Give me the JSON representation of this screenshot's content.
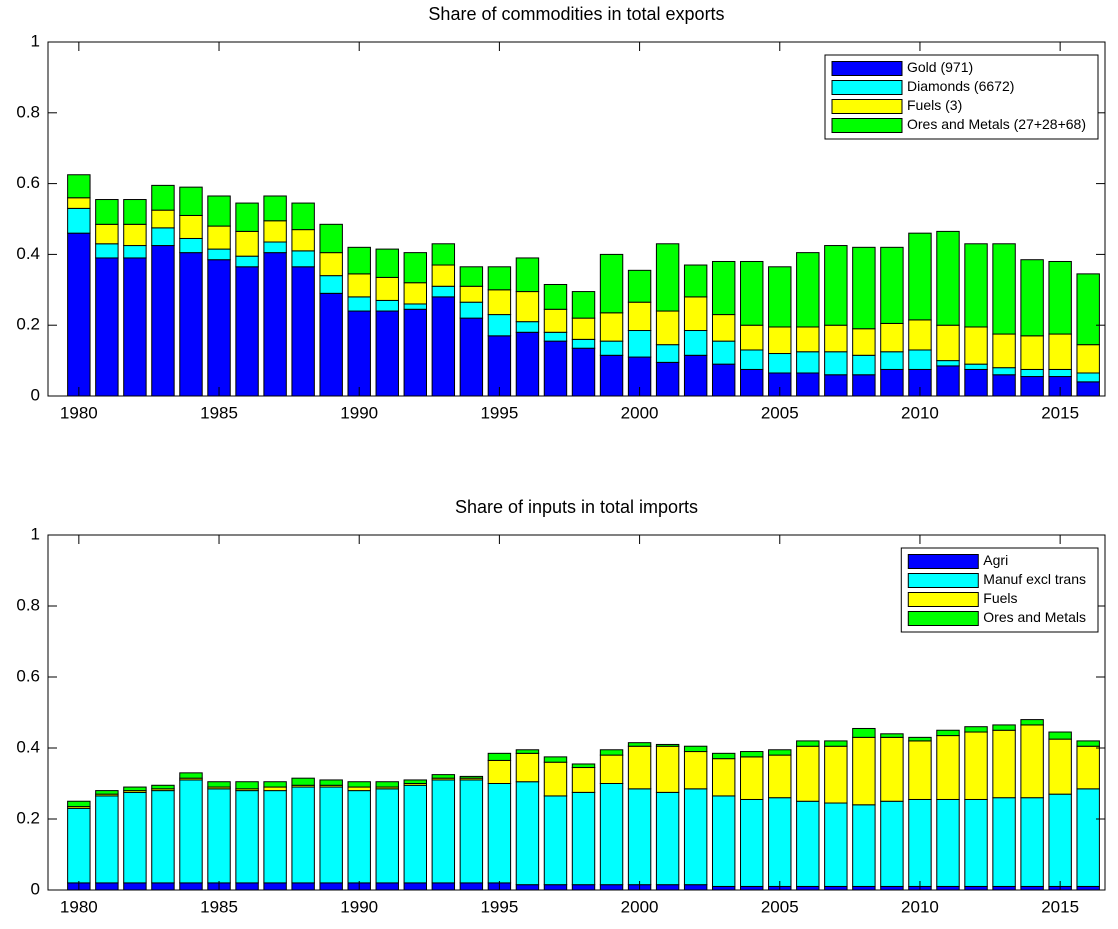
{
  "chart_data": [
    {
      "type": "stacked-bar",
      "title": "Share of commodities in total exports",
      "x": [
        1980,
        1981,
        1982,
        1983,
        1984,
        1985,
        1986,
        1987,
        1988,
        1989,
        1990,
        1991,
        1992,
        1993,
        1994,
        1995,
        1996,
        1997,
        1998,
        1999,
        2000,
        2001,
        2002,
        2003,
        2004,
        2005,
        2006,
        2007,
        2008,
        2009,
        2010,
        2011,
        2012,
        2013,
        2014,
        2015,
        2016
      ],
      "series": [
        {
          "name": "Gold (971)",
          "color": "#0000ff",
          "values": [
            0.46,
            0.39,
            0.39,
            0.425,
            0.405,
            0.385,
            0.365,
            0.405,
            0.365,
            0.29,
            0.24,
            0.24,
            0.245,
            0.28,
            0.22,
            0.17,
            0.18,
            0.155,
            0.135,
            0.115,
            0.11,
            0.095,
            0.115,
            0.09,
            0.075,
            0.065,
            0.065,
            0.06,
            0.06,
            0.075,
            0.075,
            0.085,
            0.075,
            0.06,
            0.055,
            0.055,
            0.04
          ]
        },
        {
          "name": "Diamonds (6672)",
          "color": "#00ffff",
          "values": [
            0.07,
            0.04,
            0.035,
            0.05,
            0.04,
            0.03,
            0.03,
            0.03,
            0.045,
            0.05,
            0.04,
            0.03,
            0.015,
            0.03,
            0.045,
            0.06,
            0.03,
            0.025,
            0.025,
            0.04,
            0.075,
            0.05,
            0.07,
            0.065,
            0.055,
            0.055,
            0.06,
            0.065,
            0.055,
            0.05,
            0.055,
            0.015,
            0.015,
            0.02,
            0.02,
            0.02,
            0.025
          ]
        },
        {
          "name": "Fuels (3)",
          "color": "#ffff00",
          "values": [
            0.03,
            0.055,
            0.06,
            0.05,
            0.065,
            0.065,
            0.07,
            0.06,
            0.06,
            0.065,
            0.065,
            0.065,
            0.06,
            0.06,
            0.045,
            0.07,
            0.085,
            0.065,
            0.06,
            0.08,
            0.08,
            0.095,
            0.095,
            0.075,
            0.07,
            0.075,
            0.07,
            0.075,
            0.075,
            0.08,
            0.085,
            0.1,
            0.105,
            0.095,
            0.095,
            0.1,
            0.08
          ]
        },
        {
          "name": "Ores and Metals (27+28+68)",
          "color": "#00ff00",
          "values": [
            0.065,
            0.07,
            0.07,
            0.07,
            0.08,
            0.085,
            0.08,
            0.07,
            0.075,
            0.08,
            0.075,
            0.08,
            0.085,
            0.06,
            0.055,
            0.065,
            0.095,
            0.07,
            0.075,
            0.165,
            0.09,
            0.19,
            0.09,
            0.15,
            0.18,
            0.17,
            0.21,
            0.225,
            0.23,
            0.215,
            0.245,
            0.265,
            0.235,
            0.255,
            0.215,
            0.205,
            0.2
          ]
        }
      ],
      "xlim": [
        1978.9,
        2016.6
      ],
      "xticks": [
        1980,
        1985,
        1990,
        1995,
        2000,
        2005,
        2010,
        2015
      ],
      "ylim": [
        0,
        1
      ],
      "yticks": [
        0,
        0.2,
        0.4,
        0.6,
        0.8,
        1
      ],
      "legend": "upper right"
    },
    {
      "type": "stacked-bar",
      "title": "Share of inputs in total imports",
      "x": [
        1980,
        1981,
        1982,
        1983,
        1984,
        1985,
        1986,
        1987,
        1988,
        1989,
        1990,
        1991,
        1992,
        1993,
        1994,
        1995,
        1996,
        1997,
        1998,
        1999,
        2000,
        2001,
        2002,
        2003,
        2004,
        2005,
        2006,
        2007,
        2008,
        2009,
        2010,
        2011,
        2012,
        2013,
        2014,
        2015,
        2016
      ],
      "series": [
        {
          "name": "Agri",
          "color": "#0000ff",
          "values": [
            0.02,
            0.02,
            0.02,
            0.02,
            0.02,
            0.02,
            0.02,
            0.02,
            0.02,
            0.02,
            0.02,
            0.02,
            0.02,
            0.02,
            0.02,
            0.02,
            0.015,
            0.015,
            0.015,
            0.015,
            0.015,
            0.015,
            0.015,
            0.01,
            0.01,
            0.01,
            0.01,
            0.01,
            0.01,
            0.01,
            0.01,
            0.01,
            0.01,
            0.01,
            0.01,
            0.01,
            0.01
          ]
        },
        {
          "name": "Manuf excl trans",
          "color": "#00ffff",
          "values": [
            0.21,
            0.245,
            0.255,
            0.26,
            0.29,
            0.265,
            0.26,
            0.26,
            0.27,
            0.27,
            0.26,
            0.265,
            0.275,
            0.29,
            0.29,
            0.28,
            0.29,
            0.25,
            0.26,
            0.285,
            0.27,
            0.26,
            0.27,
            0.255,
            0.245,
            0.25,
            0.24,
            0.235,
            0.23,
            0.24,
            0.245,
            0.245,
            0.245,
            0.25,
            0.25,
            0.26,
            0.275
          ]
        },
        {
          "name": "Fuels",
          "color": "#ffff00",
          "values": [
            0.005,
            0.005,
            0.005,
            0.005,
            0.005,
            0.005,
            0.005,
            0.01,
            0.005,
            0.005,
            0.01,
            0.005,
            0.005,
            0.005,
            0.005,
            0.065,
            0.08,
            0.095,
            0.07,
            0.08,
            0.12,
            0.13,
            0.105,
            0.105,
            0.12,
            0.12,
            0.155,
            0.16,
            0.19,
            0.18,
            0.165,
            0.18,
            0.19,
            0.19,
            0.205,
            0.155,
            0.12
          ]
        },
        {
          "name": "Ores and Metals",
          "color": "#00ff00",
          "values": [
            0.015,
            0.01,
            0.01,
            0.01,
            0.015,
            0.015,
            0.02,
            0.015,
            0.02,
            0.015,
            0.015,
            0.015,
            0.01,
            0.01,
            0.005,
            0.02,
            0.01,
            0.015,
            0.01,
            0.015,
            0.01,
            0.005,
            0.015,
            0.015,
            0.015,
            0.015,
            0.015,
            0.015,
            0.025,
            0.01,
            0.01,
            0.015,
            0.015,
            0.015,
            0.015,
            0.02,
            0.015
          ]
        }
      ],
      "xlim": [
        1978.9,
        2016.6
      ],
      "xticks": [
        1980,
        1985,
        1990,
        1995,
        2000,
        2005,
        2010,
        2015
      ],
      "ylim": [
        0,
        1
      ],
      "yticks": [
        0,
        0.2,
        0.4,
        0.6,
        0.8,
        1
      ],
      "legend": "upper right"
    }
  ]
}
